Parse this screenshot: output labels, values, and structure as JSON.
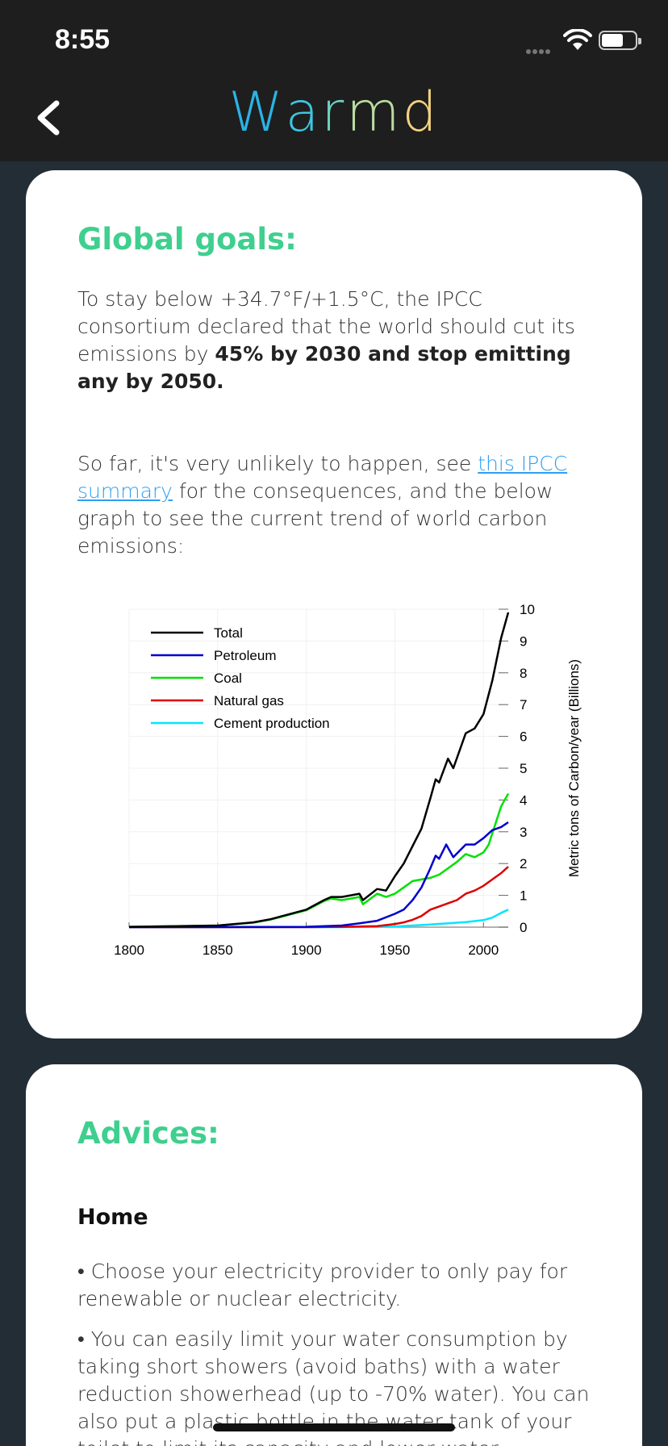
{
  "status": {
    "time": "8:55"
  },
  "nav": {
    "title_letters": [
      "W",
      "a",
      "r",
      "m",
      "d"
    ],
    "title_colors": [
      "#2bb3e6",
      "#3ec6e0",
      "#6bd1c0",
      "#b9dca0",
      "#f2d281"
    ]
  },
  "goals": {
    "heading": "Global goals:",
    "p1_start": "To stay below +34.7°F/+1.5°C, the IPCC consortium declared that the world should cut its emissions by ",
    "p1_bold": "45% by 2030 and stop emitting any by 2050.",
    "p2_start": "So far, it's very unlikely to happen, see ",
    "p2_link": "this IPCC summary",
    "p2_end": " for the consequences, and the below graph to see the current trend of world carbon emissions:"
  },
  "chart_data": {
    "type": "line",
    "title": "",
    "xlabel": "",
    "ylabel": "Metric tons of Carbon/year (Billions)",
    "xlim": [
      1800,
      2014
    ],
    "ylim": [
      0,
      10
    ],
    "x_ticks": [
      1800,
      1850,
      1900,
      1950,
      2000
    ],
    "y_ticks": [
      0,
      1,
      2,
      3,
      4,
      5,
      6,
      7,
      8,
      9,
      10
    ],
    "legend_position": "top-left",
    "grid": true,
    "series": [
      {
        "name": "Total",
        "color": "#000000",
        "x": [
          1800,
          1850,
          1870,
          1880,
          1900,
          1910,
          1914,
          1920,
          1930,
          1932,
          1940,
          1945,
          1950,
          1955,
          1960,
          1965,
          1970,
          1973,
          1975,
          1980,
          1983,
          1990,
          1995,
          2000,
          2005,
          2010,
          2014
        ],
        "values": [
          0.01,
          0.05,
          0.15,
          0.25,
          0.55,
          0.85,
          0.95,
          0.95,
          1.05,
          0.85,
          1.2,
          1.15,
          1.6,
          2.0,
          2.55,
          3.1,
          4.05,
          4.65,
          4.55,
          5.3,
          5.0,
          6.1,
          6.25,
          6.7,
          7.75,
          9.1,
          9.9
        ]
      },
      {
        "name": "Petroleum",
        "color": "#0000cc",
        "x": [
          1800,
          1900,
          1920,
          1930,
          1940,
          1950,
          1955,
          1960,
          1965,
          1970,
          1973,
          1975,
          1979,
          1983,
          1990,
          1995,
          2000,
          2005,
          2010,
          2014
        ],
        "values": [
          0,
          0.01,
          0.05,
          0.12,
          0.2,
          0.42,
          0.55,
          0.85,
          1.25,
          1.85,
          2.25,
          2.15,
          2.6,
          2.2,
          2.6,
          2.6,
          2.8,
          3.05,
          3.15,
          3.3
        ]
      },
      {
        "name": "Coal",
        "color": "#00e000",
        "x": [
          1800,
          1850,
          1870,
          1880,
          1900,
          1910,
          1914,
          1920,
          1930,
          1932,
          1940,
          1945,
          1950,
          1955,
          1960,
          1965,
          1970,
          1975,
          1980,
          1985,
          1990,
          1995,
          2000,
          2003,
          2005,
          2010,
          2014
        ],
        "values": [
          0.01,
          0.05,
          0.14,
          0.24,
          0.53,
          0.82,
          0.9,
          0.85,
          0.95,
          0.72,
          1.05,
          0.95,
          1.05,
          1.25,
          1.45,
          1.5,
          1.55,
          1.65,
          1.85,
          2.05,
          2.3,
          2.2,
          2.35,
          2.6,
          2.95,
          3.8,
          4.2
        ]
      },
      {
        "name": "Natural gas",
        "color": "#dd0000",
        "x": [
          1800,
          1900,
          1920,
          1940,
          1950,
          1955,
          1960,
          1965,
          1970,
          1975,
          1980,
          1985,
          1990,
          1995,
          2000,
          2005,
          2010,
          2014
        ],
        "values": [
          0,
          0,
          0.01,
          0.03,
          0.1,
          0.15,
          0.23,
          0.35,
          0.55,
          0.65,
          0.75,
          0.85,
          1.05,
          1.15,
          1.3,
          1.5,
          1.7,
          1.9
        ]
      },
      {
        "name": "Cement production",
        "color": "#00e5ff",
        "x": [
          1800,
          1920,
          1940,
          1950,
          1960,
          1970,
          1980,
          1990,
          2000,
          2005,
          2010,
          2014
        ],
        "values": [
          0,
          0,
          0.01,
          0.02,
          0.05,
          0.08,
          0.12,
          0.16,
          0.22,
          0.3,
          0.45,
          0.55
        ]
      }
    ]
  },
  "advices": {
    "heading": "Advices:",
    "home_heading": "Home",
    "bullet1": "• Choose your electricity provider to only pay for renewable or nuclear electricity.",
    "bullet2": "• You can easily limit your water consumption by taking short showers (avoid baths) with a water reduction showerhead (up to -70% water). You can also put a plastic bottle in the water tank of your toilet to limit its capacity and lower water"
  }
}
